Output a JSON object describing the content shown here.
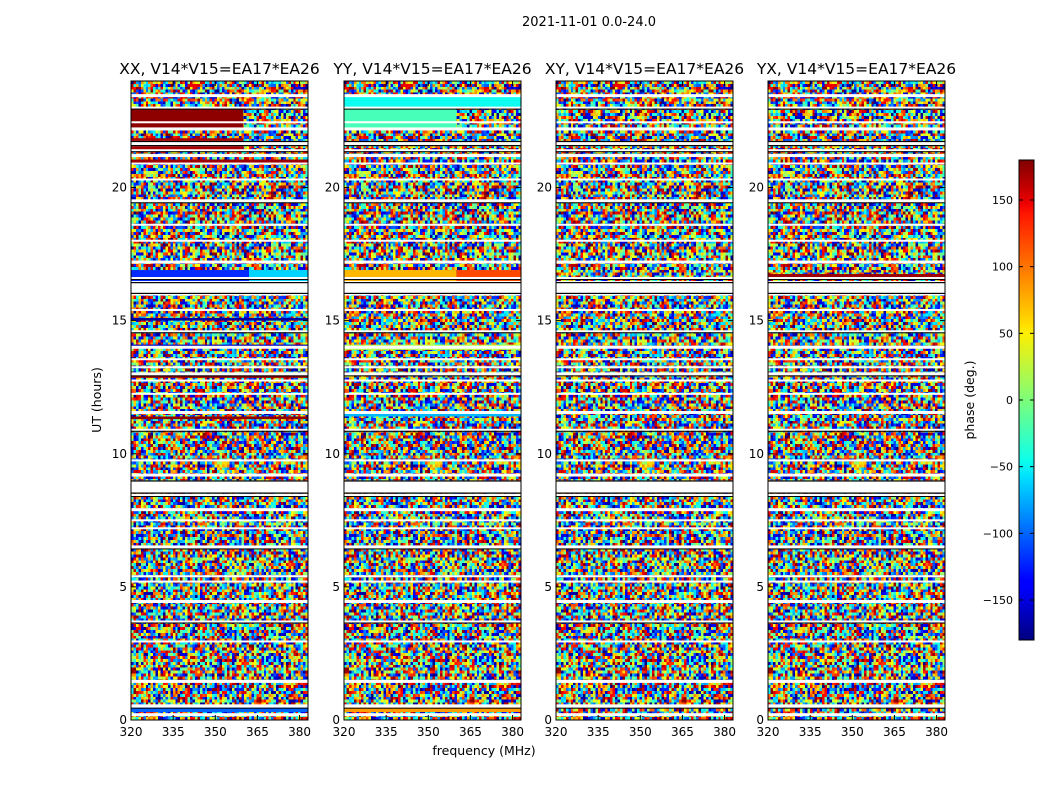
{
  "suptitle": "2021-11-01 0.0-24.0",
  "chart_data": {
    "type": "heatmap",
    "xlabel": "frequency (MHz)",
    "ylabel": "UT (hours)",
    "xlim": [
      320,
      383
    ],
    "ylim": [
      0,
      24
    ],
    "x_ticks": [
      320,
      335,
      350,
      365,
      380
    ],
    "y_ticks": [
      0,
      5,
      10,
      15,
      20
    ],
    "colorbar": {
      "label": "phase (deg.)",
      "range": [
        -180,
        180
      ],
      "ticks": [
        150,
        100,
        50,
        0,
        -50,
        -100,
        -150
      ],
      "tick_labels": [
        "150",
        "100",
        "50",
        "0",
        "−50",
        "−100",
        "−150"
      ],
      "colormap": "jet"
    },
    "flagged_ut_hours": [
      0.2,
      0.5,
      0.55,
      1.45,
      2.95,
      3.7,
      4.45,
      5.2,
      5.4,
      6.5,
      7.2,
      7.5,
      7.9,
      8.45,
      8.8,
      9.2,
      9.75,
      10.9,
      11.55,
      12.25,
      12.75,
      13.0,
      13.25,
      13.55,
      14.0,
      14.6,
      15.4,
      16.0,
      16.45,
      16.6,
      17.2,
      18.0,
      18.6,
      19.5,
      20.3,
      20.9,
      21.2,
      21.4,
      21.65,
      22.2,
      22.45,
      23.0,
      23.45
    ],
    "panels": [
      {
        "title": "XX, V14*V15=EA17*EA26",
        "coherent_bands": [
          {
            "ut_start": 0.3,
            "ut_end": 0.55,
            "freq_start": 320,
            "freq_end": 383,
            "phase_deg": -100
          },
          {
            "ut_start": 16.45,
            "ut_end": 16.9,
            "freq_start": 320,
            "freq_end": 362,
            "phase_deg": -120
          },
          {
            "ut_start": 16.45,
            "ut_end": 16.9,
            "freq_start": 362,
            "freq_end": 383,
            "phase_deg": -60
          },
          {
            "ut_start": 14.0,
            "ut_end": 14.1,
            "freq_start": 320,
            "freq_end": 383,
            "phase_deg": -160
          },
          {
            "ut_start": 15.0,
            "ut_end": 15.1,
            "freq_start": 320,
            "freq_end": 383,
            "phase_deg": -170
          },
          {
            "ut_start": 12.85,
            "ut_end": 12.95,
            "freq_start": 320,
            "freq_end": 383,
            "phase_deg": 170
          },
          {
            "ut_start": 11.3,
            "ut_end": 11.4,
            "freq_start": 320,
            "freq_end": 383,
            "phase_deg": 175
          },
          {
            "ut_start": 7.85,
            "ut_end": 7.95,
            "freq_start": 320,
            "freq_end": 383,
            "phase_deg": 175
          },
          {
            "ut_start": 20.9,
            "ut_end": 21.05,
            "freq_start": 320,
            "freq_end": 383,
            "phase_deg": 170
          },
          {
            "ut_start": 21.4,
            "ut_end": 21.85,
            "freq_start": 320,
            "freq_end": 360,
            "phase_deg": 165
          },
          {
            "ut_start": 22.2,
            "ut_end": 23.0,
            "freq_start": 320,
            "freq_end": 360,
            "phase_deg": 175
          }
        ]
      },
      {
        "title": "YY, V14*V15=EA17*EA26",
        "coherent_bands": [
          {
            "ut_start": 0.3,
            "ut_end": 0.55,
            "freq_start": 320,
            "freq_end": 383,
            "phase_deg": 80
          },
          {
            "ut_start": 16.45,
            "ut_end": 16.9,
            "freq_start": 320,
            "freq_end": 360,
            "phase_deg": 70
          },
          {
            "ut_start": 16.45,
            "ut_end": 16.9,
            "freq_start": 360,
            "freq_end": 383,
            "phase_deg": 110
          },
          {
            "ut_start": 13.9,
            "ut_end": 14.1,
            "freq_start": 320,
            "freq_end": 383,
            "phase_deg": 20
          },
          {
            "ut_start": 11.4,
            "ut_end": 11.6,
            "freq_start": 320,
            "freq_end": 383,
            "phase_deg": -70
          },
          {
            "ut_start": 22.2,
            "ut_end": 23.0,
            "freq_start": 320,
            "freq_end": 360,
            "phase_deg": -20
          },
          {
            "ut_start": 23.0,
            "ut_end": 23.45,
            "freq_start": 320,
            "freq_end": 383,
            "phase_deg": -40
          }
        ]
      },
      {
        "title": "XY, V14*V15=EA17*EA26",
        "coherent_bands": []
      },
      {
        "title": "YX, V14*V15=EA17*EA26",
        "coherent_bands": [
          {
            "ut_start": 16.6,
            "ut_end": 16.75,
            "freq_start": 320,
            "freq_end": 383,
            "phase_deg": 170
          }
        ]
      }
    ]
  }
}
